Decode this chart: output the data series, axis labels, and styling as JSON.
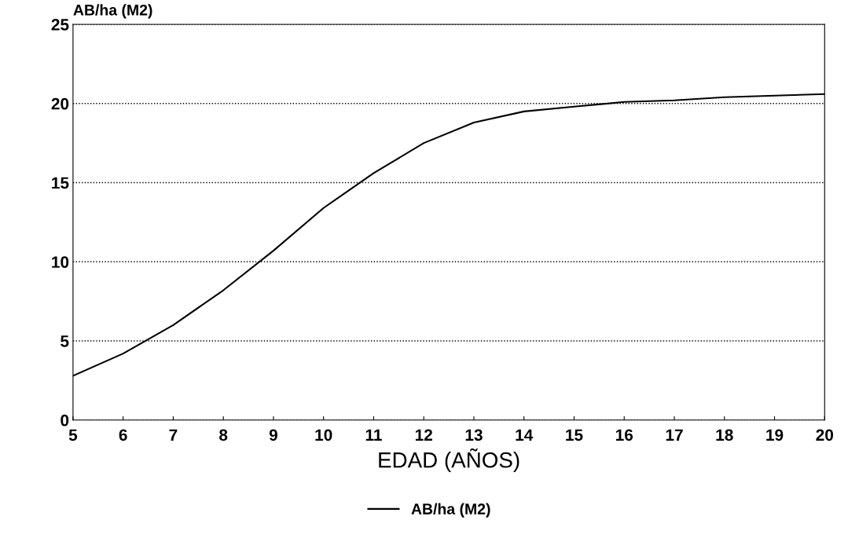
{
  "chart_data": {
    "type": "line",
    "ylabel": "AB/ha (M2)",
    "xlabel": "EDAD (AÑOS)",
    "x": [
      5,
      6,
      7,
      8,
      9,
      10,
      11,
      12,
      13,
      14,
      15,
      16,
      17,
      18,
      19,
      20
    ],
    "series": [
      {
        "name": "AB/ha (M2)",
        "color": "#000000",
        "values": [
          2.8,
          4.2,
          6.0,
          8.2,
          10.7,
          13.4,
          15.6,
          17.5,
          18.8,
          19.5,
          19.8,
          20.1,
          20.2,
          20.4,
          20.5,
          20.6
        ]
      }
    ],
    "xlim": [
      5,
      20
    ],
    "xticks": [
      5,
      6,
      7,
      8,
      9,
      10,
      11,
      12,
      13,
      14,
      15,
      16,
      17,
      18,
      19,
      20
    ],
    "ylim": [
      0,
      25
    ],
    "yticks": [
      0,
      5,
      10,
      15,
      20,
      25
    ],
    "grid": "y",
    "legend": "bottom",
    "line_style": "solid",
    "marker": "none"
  }
}
